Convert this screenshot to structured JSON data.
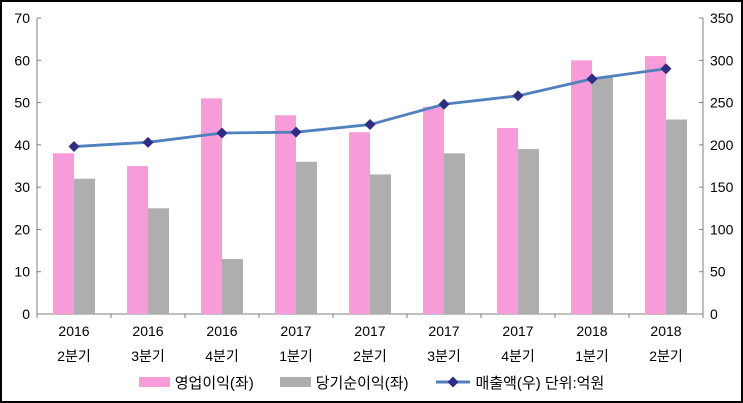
{
  "frame": {
    "background": "#FFFFFF",
    "border_color": "#000000",
    "axis_color": "#808080",
    "text_color": "#000000"
  },
  "chart_data": {
    "type": "combo",
    "title": "",
    "categories": [
      {
        "year": "2016",
        "quarter": "2분기"
      },
      {
        "year": "2016",
        "quarter": "3분기"
      },
      {
        "year": "2016",
        "quarter": "4분기"
      },
      {
        "year": "2017",
        "quarter": "1분기"
      },
      {
        "year": "2017",
        "quarter": "2분기"
      },
      {
        "year": "2017",
        "quarter": "3분기"
      },
      {
        "year": "2017",
        "quarter": "4분기"
      },
      {
        "year": "2018",
        "quarter": "1분기"
      },
      {
        "year": "2018",
        "quarter": "2분기"
      }
    ],
    "series": [
      {
        "key": "operating-profit",
        "name": "영업이익(좌)",
        "type": "bar",
        "axis": "left",
        "color": "#F79BD9",
        "values": [
          38,
          35,
          51,
          47,
          43,
          49,
          44,
          60,
          61
        ]
      },
      {
        "key": "net-profit",
        "name": "당기순이익(좌)",
        "type": "bar",
        "axis": "left",
        "color": "#AEAEAE",
        "values": [
          32,
          25,
          13,
          36,
          33,
          38,
          39,
          56,
          46
        ]
      },
      {
        "key": "revenue",
        "name": "매출액(우)",
        "type": "line",
        "axis": "right",
        "color": "#4F81BD",
        "marker": "diamond",
        "marker_color": "#2D2D86",
        "values": [
          198,
          203,
          214,
          215,
          224,
          248,
          258,
          278,
          290
        ]
      }
    ],
    "left_axis": {
      "min": 0,
      "max": 70,
      "step": 10,
      "ticks": [
        0,
        10,
        20,
        30,
        40,
        50,
        60,
        70
      ]
    },
    "right_axis": {
      "min": 0,
      "max": 350,
      "step": 50,
      "ticks": [
        0,
        50,
        100,
        150,
        200,
        250,
        300,
        350
      ]
    },
    "grid": false,
    "unit_note": "단위:억원",
    "legend": {
      "position": "bottom",
      "items": [
        "영업이익(좌)",
        "당기순이익(좌)",
        "매출액(우) 단위:억원"
      ]
    }
  }
}
